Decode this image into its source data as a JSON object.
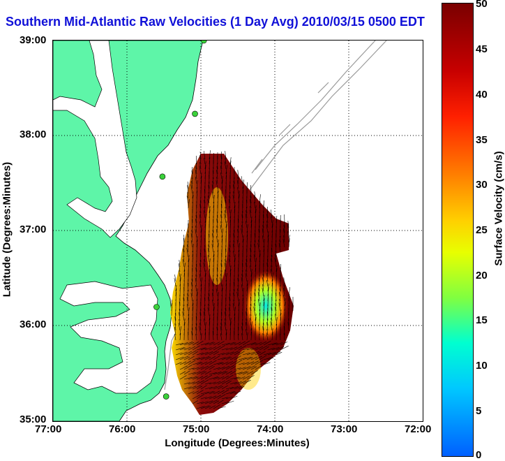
{
  "title": "Southern Mid-Atlantic Raw Velocities (1 Day Avg) 2010/03/15 0500 EDT",
  "x_axis_title": "Longitude (Degrees:Minutes)",
  "y_axis_title": "Latitude (Degrees:Minutes)",
  "x_ticks": [
    "77:00",
    "76:00",
    "75:00",
    "74:00",
    "73:00",
    "72:00"
  ],
  "y_ticks": [
    "39:00",
    "38:00",
    "37:00",
    "36:00",
    "35:00"
  ],
  "colorbar": {
    "title": "Surface Velocity (cm/s)",
    "ticks": [
      "50",
      "45",
      "40",
      "35",
      "30",
      "25",
      "20",
      "15",
      "10",
      "5",
      "0"
    ],
    "range": [
      0,
      50
    ]
  },
  "colors": {
    "land": "#5ef5a8",
    "water": "#ffffff",
    "title": "#1010d8",
    "station": "#3bd13b"
  },
  "map": {
    "lon_range": [
      -77,
      -72
    ],
    "lat_range": [
      35,
      39
    ],
    "grid": true,
    "stations": [
      {
        "lon": -74.96,
        "lat": 39.0
      },
      {
        "lon": -75.08,
        "lat": 38.23
      },
      {
        "lon": -75.52,
        "lat": 37.57
      },
      {
        "lon": -75.6,
        "lat": 36.2
      },
      {
        "lon": -75.47,
        "lat": 35.26
      }
    ]
  }
}
